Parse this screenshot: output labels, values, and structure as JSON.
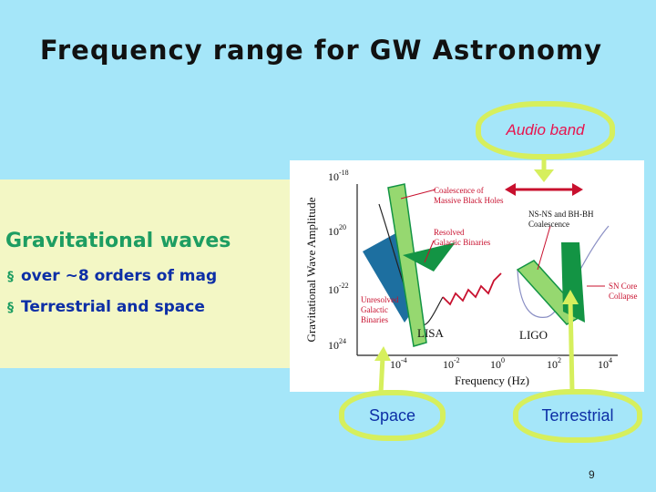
{
  "slide": {
    "title": "Frequency range for GW Astronomy",
    "heading": "Gravitational waves",
    "bullets": [
      "over ~8 orders of mag",
      "Terrestrial and space"
    ],
    "bullet_marker": "§",
    "page_number": "9"
  },
  "callouts": {
    "audio": "Audio band",
    "space": "Space",
    "terrestrial": "Terrestrial"
  },
  "figure": {
    "ylabel": "Gravitational Wave Amplitude",
    "xlabel": "Frequency (Hz)",
    "yticks": {
      "base": "10",
      "exps": [
        "-18",
        "20",
        "-22",
        "24"
      ]
    },
    "xticks": {
      "base": "10",
      "exps": [
        "-4",
        "-2",
        "0",
        "2",
        "4"
      ]
    },
    "labels": {
      "coalescence_bh": [
        "Coalescence of",
        "Massive Black Holes"
      ],
      "resolved": [
        "Resolved",
        "Galactic Binaries"
      ],
      "nsbh": [
        "NS-NS and BH-BH",
        "Coalescence"
      ],
      "unresolved": [
        "Unresolved",
        "Galactic",
        "Binaries"
      ],
      "sn": [
        "SN Core",
        "Collapse"
      ],
      "lisa": "LISA",
      "ligo": "LIGO"
    }
  },
  "colors": {
    "background": "#a5e6f9",
    "title": "#111111",
    "heading": "#1d9d62",
    "bullet_text": "#0d2fa6",
    "callout_ring": "#d6ef5d",
    "audio_text": "#e8144e",
    "figure_red": "#c8102e",
    "figure_green": "#139444",
    "figure_teal": "#1d6fa0"
  }
}
